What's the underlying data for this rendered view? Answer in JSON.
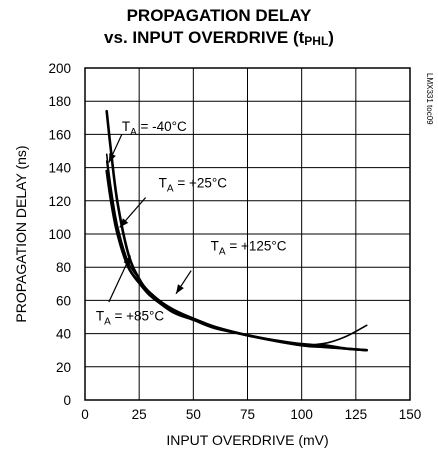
{
  "chart_data": {
    "type": "line",
    "title_line1": "PROPAGATION DELAY",
    "title_line2_main": "vs. INPUT OVERDRIVE (t",
    "title_line2_sub": "PHL",
    "title_line2_end": ")",
    "xlabel": "INPUT OVERDRIVE (mV)",
    "ylabel": "PROPAGATION DELAY (ns)",
    "xlim": [
      0,
      150
    ],
    "ylim": [
      0,
      200
    ],
    "xticks": [
      0,
      25,
      50,
      75,
      100,
      125,
      150
    ],
    "yticks": [
      0,
      20,
      40,
      60,
      80,
      100,
      120,
      140,
      160,
      180,
      200
    ],
    "grid": true,
    "figure_code": "LMX331 toc09",
    "series": [
      {
        "name": "T_A = -40°C",
        "x": [
          10,
          12,
          15,
          20,
          25,
          30,
          40,
          50,
          60,
          75,
          100,
          110,
          120,
          130
        ],
        "y": [
          174,
          150,
          119,
          88,
          73,
          64,
          55,
          49,
          44,
          39,
          33,
          32,
          31,
          30
        ]
      },
      {
        "name": "T_A = +25°C",
        "x": [
          10,
          12,
          15,
          20,
          25,
          30,
          40,
          50,
          60,
          75,
          100,
          110,
          120,
          130
        ],
        "y": [
          148,
          128,
          105,
          83,
          73,
          65,
          55,
          49,
          44,
          39,
          33,
          32,
          31,
          30
        ]
      },
      {
        "name": "T_A = +125°C",
        "x": [
          10,
          12,
          15,
          20,
          25,
          30,
          40,
          50,
          60,
          75,
          100,
          110,
          120,
          130
        ],
        "y": [
          144,
          125,
          102,
          80,
          70,
          63,
          53,
          48,
          43,
          39,
          34,
          34,
          38,
          45
        ]
      },
      {
        "name": "T_A = +85°C",
        "x": [
          10,
          12,
          15,
          20,
          25,
          30,
          40,
          50,
          60,
          75,
          100,
          110,
          120,
          130
        ],
        "y": [
          138,
          120,
          100,
          80,
          71,
          63,
          54,
          49,
          44,
          39,
          33,
          33,
          31,
          30
        ]
      }
    ],
    "annotations": [
      {
        "series": 0,
        "base": "T",
        "sub": "A",
        "rest": " = -40°C",
        "text": "T_A = -40°C"
      },
      {
        "series": 1,
        "base": "T",
        "sub": "A",
        "rest": " = +25°C",
        "text": "T_A = +25°C"
      },
      {
        "series": 2,
        "base": "T",
        "sub": "A",
        "rest": " = +125°C",
        "text": "T_A = +125°C"
      },
      {
        "series": 3,
        "base": "T",
        "sub": "A",
        "rest": " = +85°C",
        "text": "T_A = +85°C"
      }
    ]
  }
}
